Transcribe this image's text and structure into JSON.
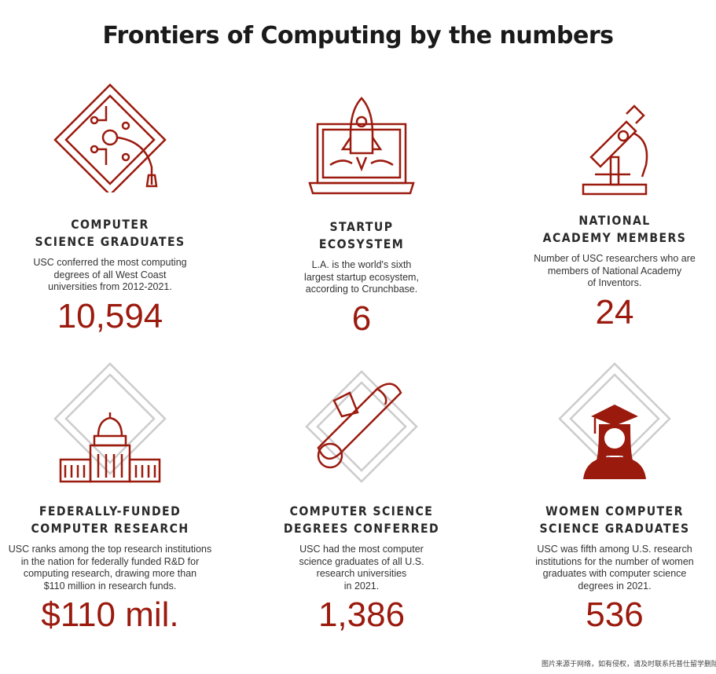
{
  "title": "Frontiers of Computing by the numbers",
  "accent_color": "#9b1a0e",
  "stats": [
    {
      "icon": "circuit-graduation-cap-icon",
      "heading": "COMPUTER\nSCIENCE GRADUATES",
      "description": "USC conferred the most computing\ndegrees of all West Coast\nuniversities from 2012-2021.",
      "value": "10,594"
    },
    {
      "icon": "rocket-laptop-icon",
      "heading": "STARTUP\nECOSYSTEM",
      "description": "L.A. is the world's sixth\nlargest startup ecosystem,\naccording to Crunchbase.",
      "value": "6"
    },
    {
      "icon": "microscope-icon",
      "heading": "NATIONAL\nACADEMY MEMBERS",
      "description": "Number of USC researchers who are\nmembers of National Academy\nof Inventors.",
      "value": "24"
    },
    {
      "icon": "capitol-building-icon",
      "heading": "FEDERALLY-FUNDED\nCOMPUTER RESEARCH",
      "description": "USC ranks among the top research institutions\nin the nation for federally funded R&D for\ncomputing research, drawing more than\n$110 million in research funds.",
      "value": "$110 mil."
    },
    {
      "icon": "diploma-scroll-icon",
      "heading": "COMPUTER SCIENCE\nDEGREES CONFERRED",
      "description": "USC had the most computer\nscience graduates of all U.S.\nresearch universities\nin 2021.",
      "value": "1,386"
    },
    {
      "icon": "woman-graduate-icon",
      "heading": "WOMEN COMPUTER\nSCIENCE GRADUATES",
      "description": "USC was fifth among U.S. research\ninstitutions for the number of women\ngraduates with computer science\ndegrees in 2021.",
      "value": "536"
    }
  ],
  "watermark": "图片来源于网络，如有侵权，请及时联系托普仕留学删除"
}
